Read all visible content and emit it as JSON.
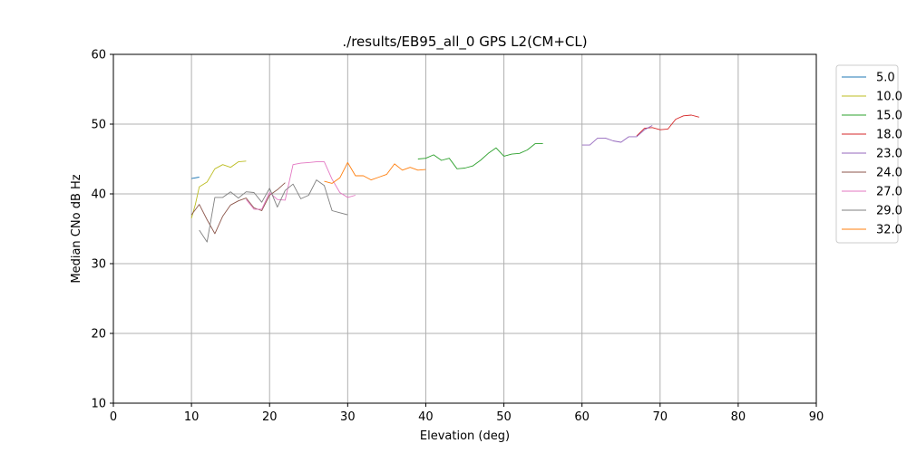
{
  "chart_data": {
    "type": "line",
    "title": "./results/EB95_all_0 GPS L2(CM+CL)",
    "xlabel": "Elevation (deg)",
    "ylabel": "Median CNo dB Hz",
    "xlim": [
      0,
      90
    ],
    "ylim": [
      10,
      60
    ],
    "xticks": [
      0,
      10,
      20,
      30,
      40,
      50,
      60,
      70,
      80,
      90
    ],
    "yticks": [
      10,
      20,
      30,
      40,
      50,
      60
    ],
    "grid": true,
    "legend_position": "outside-right",
    "series": [
      {
        "name": "5.0",
        "color": "#1f77b4",
        "x": [
          10,
          11
        ],
        "y": [
          42.2,
          42.4
        ]
      },
      {
        "name": "10.0",
        "color": "#bcbd22",
        "x": [
          10,
          10.5,
          11,
          12,
          13,
          14,
          15,
          16,
          17
        ],
        "y": [
          36.5,
          38.5,
          41,
          41.7,
          43.6,
          44.2,
          43.8,
          44.6,
          44.7
        ]
      },
      {
        "name": "15.0",
        "color": "#2ca02c",
        "x": [
          39,
          40,
          41,
          42,
          43,
          44,
          45,
          46,
          47,
          48,
          49,
          50,
          51,
          52,
          53,
          54,
          55
        ],
        "y": [
          45,
          45.1,
          45.6,
          44.8,
          45.1,
          43.6,
          43.7,
          44,
          44.8,
          45.8,
          46.6,
          45.4,
          45.7,
          45.8,
          46.3,
          47.2,
          47.2
        ]
      },
      {
        "name": "18.0",
        "color": "#d62728",
        "x": [
          67,
          68,
          69,
          70,
          71,
          72,
          73,
          74,
          75
        ],
        "y": [
          48.3,
          49.4,
          49.5,
          49.2,
          49.3,
          50.7,
          51.2,
          51.3,
          51
        ]
      },
      {
        "name": "23.0",
        "color": "#9467bd",
        "x": [
          60,
          61,
          62,
          63,
          64,
          65,
          66,
          67,
          68,
          69
        ],
        "y": [
          47,
          47,
          48,
          48,
          47.6,
          47.4,
          48.2,
          48.2,
          49.2,
          49.8
        ]
      },
      {
        "name": "24.0",
        "color": "#8c564b",
        "x": [
          10,
          11,
          12,
          13,
          14,
          15,
          16,
          17,
          18,
          19,
          20,
          21,
          22
        ],
        "y": [
          37,
          38.5,
          36.3,
          34.3,
          36.8,
          38.4,
          39,
          39.4,
          38,
          37.6,
          39.8,
          40.6,
          41.6
        ]
      },
      {
        "name": "27.0",
        "color": "#e377c2",
        "x": [
          17,
          18,
          19,
          20,
          21,
          22,
          23,
          24,
          25,
          26,
          27,
          28,
          29,
          30,
          31
        ],
        "y": [
          39.2,
          37.8,
          37.8,
          40.2,
          39.2,
          39.1,
          44.2,
          44.4,
          44.5,
          44.6,
          44.6,
          42.1,
          40.2,
          39.5,
          39.8
        ]
      },
      {
        "name": "29.0",
        "color": "#7f7f7f",
        "x": [
          11,
          12,
          13,
          14,
          15,
          16,
          17,
          18,
          19,
          20,
          21,
          22,
          23,
          24,
          25,
          26,
          27,
          28,
          29,
          30
        ],
        "y": [
          34.8,
          33.1,
          39.5,
          39.5,
          40.3,
          39.4,
          40.3,
          40.2,
          38.8,
          40.8,
          38.1,
          40.5,
          41.4,
          39.3,
          39.8,
          42,
          41.2,
          37.6,
          37.3,
          37
        ]
      },
      {
        "name": "32.0",
        "color": "#ff7f0e",
        "x": [
          27,
          28,
          29,
          30,
          31,
          32,
          33,
          34,
          35,
          36,
          37,
          38,
          39,
          40
        ],
        "y": [
          41.8,
          41.5,
          42.3,
          44.5,
          42.6,
          42.6,
          42,
          42.4,
          42.8,
          44.3,
          43.4,
          43.8,
          43.4,
          43.5
        ]
      }
    ]
  }
}
